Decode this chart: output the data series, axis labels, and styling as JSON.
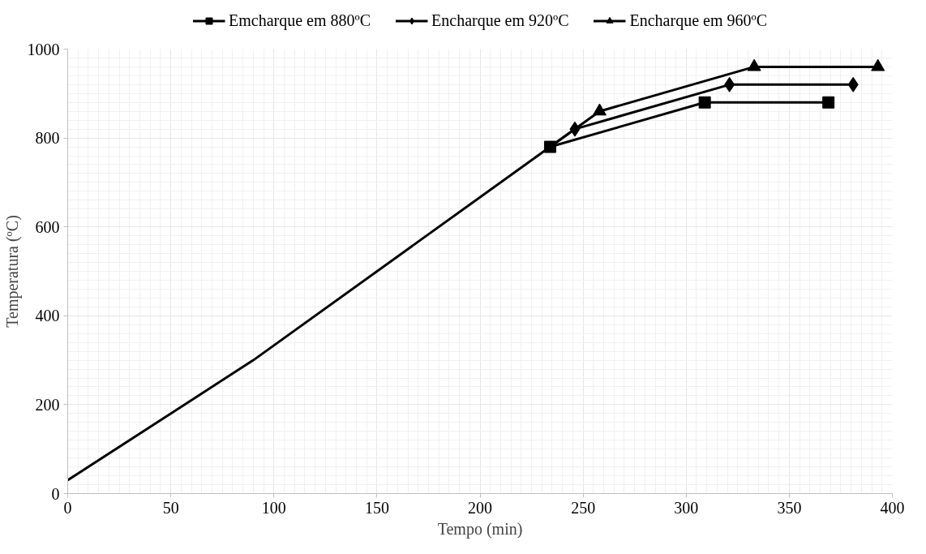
{
  "chart_data": {
    "type": "line",
    "xlabel": "Tempo (min)",
    "ylabel": "Temperatura (ºC)",
    "xlim": [
      0,
      400
    ],
    "xticks": [
      0,
      50,
      100,
      150,
      200,
      250,
      300,
      350,
      400
    ],
    "ylim": [
      0,
      1000
    ],
    "yticks": [
      0,
      200,
      400,
      600,
      800,
      1000
    ],
    "grid": true,
    "legend": "top",
    "line_style": "solid",
    "series": [
      {
        "color": "#000000",
        "marker": "none",
        "x": [
          0,
          90,
          234
        ],
        "values": [
          30,
          300,
          780
        ]
      },
      {
        "color": "#000000",
        "x": [
          234,
          258
        ],
        "values": [
          780,
          860
        ]
      },
      {
        "color": "#000000",
        "x": [
          234,
          246
        ],
        "values": [
          780,
          820
        ]
      },
      {
        "name": "Encharque em 960ºC",
        "color": "#000000",
        "marker": "triangle",
        "x": [
          258,
          333,
          393
        ],
        "values": [
          860,
          960,
          960
        ]
      },
      {
        "name": "Encharque em 920ºC",
        "color": "#000000",
        "marker": "diamond",
        "x": [
          246,
          321,
          381
        ],
        "values": [
          820,
          920,
          920
        ]
      },
      {
        "name": "Emcharque em 880ºC",
        "color": "#000000",
        "marker": "square",
        "x": [
          234,
          309,
          369
        ],
        "values": [
          780,
          880,
          880
        ]
      }
    ]
  }
}
